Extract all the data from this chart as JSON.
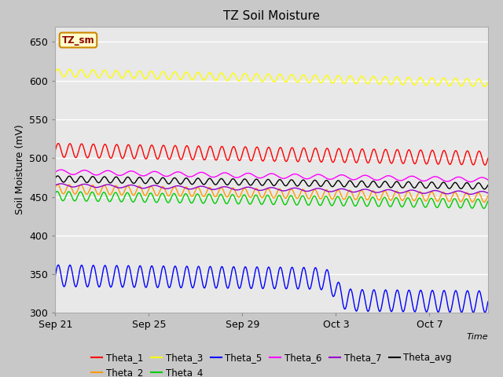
{
  "title": "TZ Soil Moisture",
  "xlabel": "Time",
  "ylabel": "Soil Moisture (mV)",
  "ylim": [
    300,
    670
  ],
  "yticks": [
    300,
    350,
    400,
    450,
    500,
    550,
    600,
    650
  ],
  "xlim_days": 18.5,
  "fig_bg_color": "#c8c8c8",
  "plot_bg_color": "#e8e8e8",
  "legend_box_label": "TZ_sm",
  "legend_box_facecolor": "#ffffcc",
  "legend_box_edgecolor": "#cc8800",
  "legend_box_text_color": "#8B0000",
  "grid_color": "#ffffff",
  "series": {
    "Theta_1": {
      "color": "#ff0000",
      "base": 510,
      "amplitude": 9,
      "trend": -0.55,
      "freq": 2.0,
      "phase": 0.0
    },
    "Theta_2": {
      "color": "#ff9900",
      "base": 460,
      "amplitude": 6,
      "trend": -0.6,
      "freq": 2.0,
      "phase": 0.4
    },
    "Theta_3": {
      "color": "#ffff00",
      "base": 610,
      "amplitude": 5,
      "trend": -0.7,
      "freq": 2.0,
      "phase": 0.2
    },
    "Theta_4": {
      "color": "#00cc00",
      "base": 451,
      "amplitude": 6,
      "trend": -0.55,
      "freq": 2.0,
      "phase": 0.6
    },
    "Theta_5": {
      "color": "#0000ff",
      "base": 348,
      "amplitude": 14,
      "trend": -0.3,
      "freq": 2.0,
      "phase": 0.0,
      "step_day": 12.0,
      "step_size": -28
    },
    "Theta_6": {
      "color": "#ff00ff",
      "base": 482,
      "amplitude": 3,
      "trend": -0.55,
      "freq": 1.0,
      "phase": 0.0
    },
    "Theta_7": {
      "color": "#9900cc",
      "base": 465,
      "amplitude": 2,
      "trend": -0.55,
      "freq": 1.0,
      "phase": 0.0
    },
    "Theta_avg": {
      "color": "#000000",
      "base": 473,
      "amplitude": 4,
      "trend": -0.5,
      "freq": 2.0,
      "phase": 0.3
    }
  },
  "xtick_labels": [
    "Sep 21",
    "Sep 25",
    "Sep 29",
    "Oct 3",
    "Oct 7"
  ],
  "xtick_positions": [
    0,
    4,
    8,
    12,
    16
  ],
  "n_days": 18.5,
  "samples_per_day": 48
}
